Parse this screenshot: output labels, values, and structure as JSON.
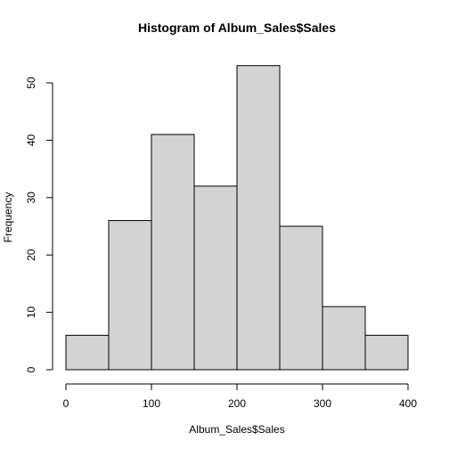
{
  "chart_data": {
    "type": "bar",
    "title": "Histogram of Album_Sales$Sales",
    "xlabel": "Album_Sales$Sales",
    "ylabel": "Frequency",
    "bins": [
      {
        "from": 0,
        "to": 50,
        "count": 6
      },
      {
        "from": 50,
        "to": 100,
        "count": 26
      },
      {
        "from": 100,
        "to": 150,
        "count": 41
      },
      {
        "from": 150,
        "to": 200,
        "count": 32
      },
      {
        "from": 200,
        "to": 250,
        "count": 53
      },
      {
        "from": 250,
        "to": 300,
        "count": 25
      },
      {
        "from": 300,
        "to": 350,
        "count": 11
      },
      {
        "from": 350,
        "to": 400,
        "count": 6
      }
    ],
    "xlim": [
      0,
      400
    ],
    "ylim": [
      0,
      50
    ],
    "x_ticks": [
      0,
      100,
      200,
      300,
      400
    ],
    "y_ticks": [
      0,
      10,
      20,
      30,
      40,
      50
    ],
    "bar_fill": "#d3d3d3",
    "bar_stroke": "#000000",
    "grid": false
  }
}
